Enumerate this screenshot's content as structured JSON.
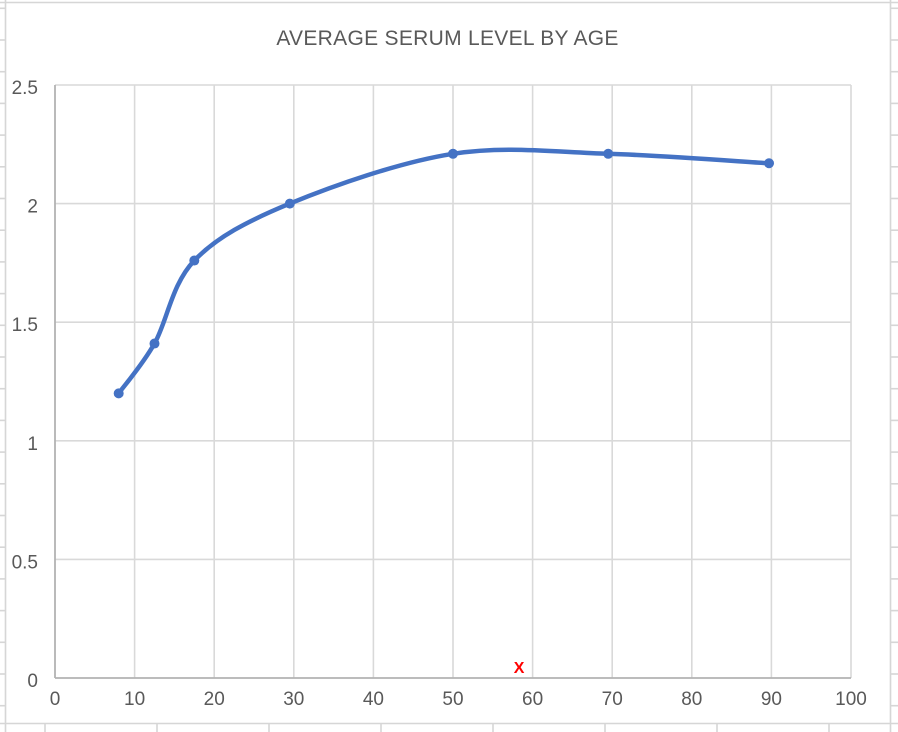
{
  "chart_data": {
    "type": "scatter",
    "subtype": "smooth-line-with-markers",
    "title": "AVERAGE SERUM LEVEL BY AGE",
    "xlabel": "",
    "ylabel": "",
    "xlim": [
      0,
      100
    ],
    "ylim": [
      0,
      2.5
    ],
    "x_ticks": [
      "0",
      "10",
      "20",
      "30",
      "40",
      "50",
      "60",
      "70",
      "80",
      "90",
      "100"
    ],
    "y_ticks": [
      "0",
      "0.5",
      "1",
      "1.5",
      "2",
      "2.5"
    ],
    "grid": true,
    "legend": "none",
    "series": [
      {
        "color": "#4472c4",
        "points": [
          {
            "x": 8,
            "y": 1.2
          },
          {
            "x": 12.5,
            "y": 1.41
          },
          {
            "x": 17.5,
            "y": 1.76
          },
          {
            "x": 29.5,
            "y": 2.0
          },
          {
            "x": 50,
            "y": 2.21
          },
          {
            "x": 69.5,
            "y": 2.21
          },
          {
            "x": 89.7,
            "y": 2.17
          }
        ]
      }
    ],
    "annotation": {
      "label": "X",
      "x": 58.3,
      "y": 0,
      "color": "#ff0000"
    },
    "colors": {
      "line": "#4472c4",
      "marker": "#4472c4",
      "gridline": "#d9d9d9",
      "axis_line": "#b3b3b3",
      "tick_label": "#595959",
      "title": "#595959",
      "spreadsheet_grid": "#d6d6d6"
    }
  }
}
